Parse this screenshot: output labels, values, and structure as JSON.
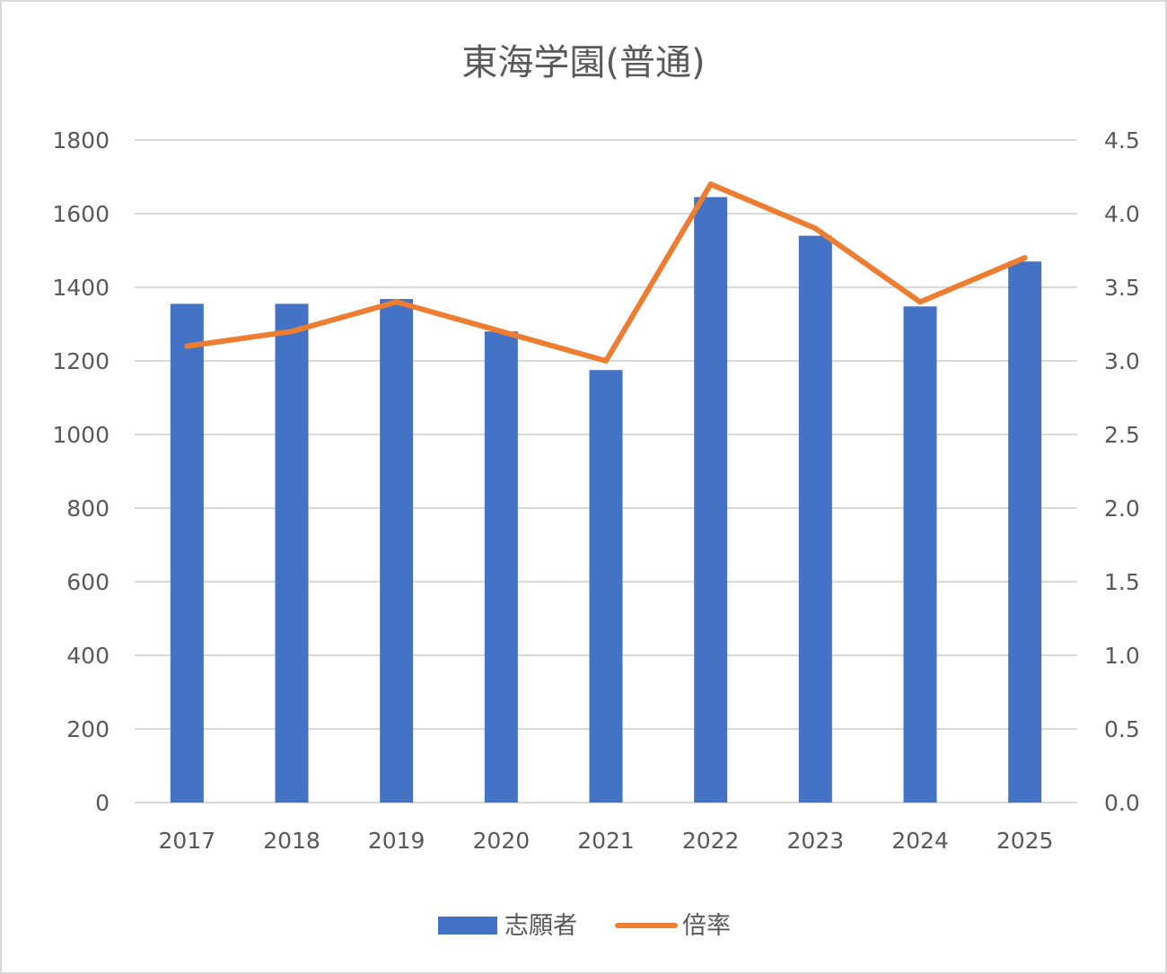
{
  "chart_data": {
    "type": "bar",
    "title": "東海学園(普通)",
    "categories": [
      "2017",
      "2018",
      "2019",
      "2020",
      "2021",
      "2022",
      "2023",
      "2024",
      "2025"
    ],
    "series": [
      {
        "name": "志願者",
        "type": "bar",
        "axis": "left",
        "color": "#4472c4",
        "values": [
          1355,
          1355,
          1368,
          1280,
          1175,
          1645,
          1540,
          1348,
          1470
        ]
      },
      {
        "name": "倍率",
        "type": "line",
        "axis": "right",
        "color": "#ed7d31",
        "values": [
          3.1,
          3.2,
          3.4,
          3.2,
          3.0,
          4.2,
          3.9,
          3.4,
          3.7
        ]
      }
    ],
    "y_left": {
      "ylim": [
        0,
        1800
      ],
      "ticks": [
        "0",
        "200",
        "400",
        "600",
        "800",
        "1000",
        "1200",
        "1400",
        "1600",
        "1800"
      ]
    },
    "y_right": {
      "ylim": [
        0,
        4.5
      ],
      "ticks": [
        "0.0",
        "0.5",
        "1.0",
        "1.5",
        "2.0",
        "2.5",
        "3.0",
        "3.5",
        "4.0",
        "4.5"
      ]
    },
    "grid": true,
    "gridline_color": "#d9d9d9",
    "legend_position": "bottom"
  }
}
